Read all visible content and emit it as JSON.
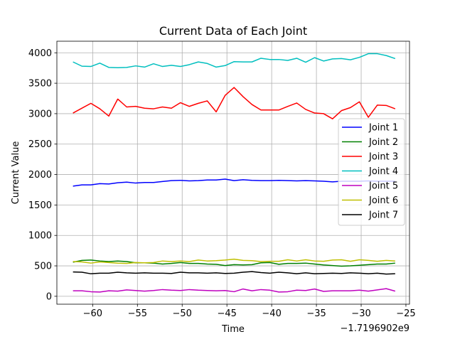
{
  "chart_data": {
    "type": "line",
    "title": "Current Data of Each Joint",
    "xlabel": "Time",
    "ylabel": "Current Value",
    "x_offset_label": "−1.7196902e9",
    "xlim": [
      -64,
      -24.6
    ],
    "ylim": [
      -130,
      4190
    ],
    "xticks": [
      -60,
      -55,
      -50,
      -45,
      -40,
      -35,
      -30,
      -25
    ],
    "xtick_labels": [
      "−60",
      "−55",
      "−50",
      "−45",
      "−40",
      "−35",
      "−30",
      "−25"
    ],
    "yticks": [
      0,
      500,
      1000,
      1500,
      2000,
      2500,
      3000,
      3500,
      4000
    ],
    "ytick_labels": [
      "0",
      "500",
      "1000",
      "1500",
      "2000",
      "2500",
      "3000",
      "3500",
      "4000"
    ],
    "grid": true,
    "legend_position": "center-right",
    "x": [
      -62.2,
      -61.2,
      -60.2,
      -59.2,
      -58.2,
      -57.2,
      -56.2,
      -55.2,
      -54.2,
      -53.2,
      -52.2,
      -51.2,
      -50.2,
      -49.2,
      -48.2,
      -47.2,
      -46.2,
      -45.2,
      -44.2,
      -43.2,
      -42.2,
      -41.2,
      -40.2,
      -39.2,
      -38.2,
      -37.2,
      -36.2,
      -35.2,
      -34.2,
      -33.2,
      -32.2,
      -31.2,
      -30.2,
      -29.2,
      -28.2,
      -27.2,
      -26.2
    ],
    "series": [
      {
        "name": "Joint 1",
        "color": "#0000ff",
        "values": [
          1810,
          1830,
          1830,
          1850,
          1845,
          1865,
          1875,
          1860,
          1870,
          1870,
          1885,
          1900,
          1905,
          1895,
          1900,
          1910,
          1910,
          1925,
          1900,
          1915,
          1905,
          1900,
          1900,
          1905,
          1900,
          1895,
          1900,
          1895,
          1890,
          1880,
          1890,
          1890,
          1890,
          1895,
          1890,
          1890,
          1890
        ]
      },
      {
        "name": "Joint 2",
        "color": "#008000",
        "values": [
          560,
          590,
          595,
          580,
          570,
          580,
          570,
          550,
          550,
          545,
          530,
          540,
          555,
          540,
          540,
          530,
          525,
          505,
          520,
          515,
          520,
          550,
          555,
          525,
          540,
          540,
          545,
          530,
          515,
          505,
          495,
          500,
          510,
          520,
          530,
          530,
          545
        ]
      },
      {
        "name": "Joint 3",
        "color": "#ff0000",
        "values": [
          3010,
          3090,
          3170,
          3080,
          2960,
          3240,
          3110,
          3120,
          3090,
          3080,
          3110,
          3090,
          3180,
          3120,
          3170,
          3210,
          3030,
          3300,
          3430,
          3280,
          3150,
          3060,
          3060,
          3060,
          3120,
          3175,
          3070,
          3010,
          3000,
          2915,
          3050,
          3100,
          3195,
          2940,
          3140,
          3135,
          3080
        ]
      },
      {
        "name": "Joint 4",
        "color": "#00bfbf",
        "values": [
          3850,
          3780,
          3775,
          3830,
          3760,
          3755,
          3760,
          3785,
          3765,
          3820,
          3775,
          3795,
          3775,
          3805,
          3850,
          3825,
          3765,
          3790,
          3855,
          3850,
          3850,
          3910,
          3890,
          3890,
          3875,
          3910,
          3845,
          3920,
          3865,
          3900,
          3905,
          3885,
          3925,
          3985,
          3985,
          3955,
          3905
        ]
      },
      {
        "name": "Joint 5",
        "color": "#bf00bf",
        "values": [
          90,
          90,
          75,
          70,
          90,
          85,
          105,
          95,
          85,
          95,
          110,
          100,
          95,
          110,
          100,
          95,
          90,
          95,
          75,
          120,
          90,
          110,
          100,
          70,
          75,
          100,
          95,
          120,
          80,
          90,
          90,
          90,
          100,
          85,
          105,
          125,
          85
        ]
      },
      {
        "name": "Joint 6",
        "color": "#bfbf00",
        "values": [
          570,
          565,
          545,
          565,
          555,
          545,
          540,
          555,
          550,
          555,
          580,
          570,
          580,
          570,
          595,
          580,
          585,
          595,
          610,
          590,
          585,
          570,
          575,
          575,
          600,
          580,
          600,
          580,
          575,
          595,
          600,
          575,
          600,
          590,
          575,
          590,
          580
        ]
      },
      {
        "name": "Joint 7",
        "color": "#000000",
        "values": [
          400,
          395,
          370,
          380,
          380,
          395,
          385,
          380,
          385,
          380,
          380,
          375,
          395,
          385,
          385,
          380,
          385,
          375,
          380,
          395,
          405,
          390,
          380,
          395,
          385,
          370,
          385,
          370,
          375,
          380,
          375,
          385,
          380,
          370,
          380,
          365,
          370
        ]
      }
    ]
  }
}
